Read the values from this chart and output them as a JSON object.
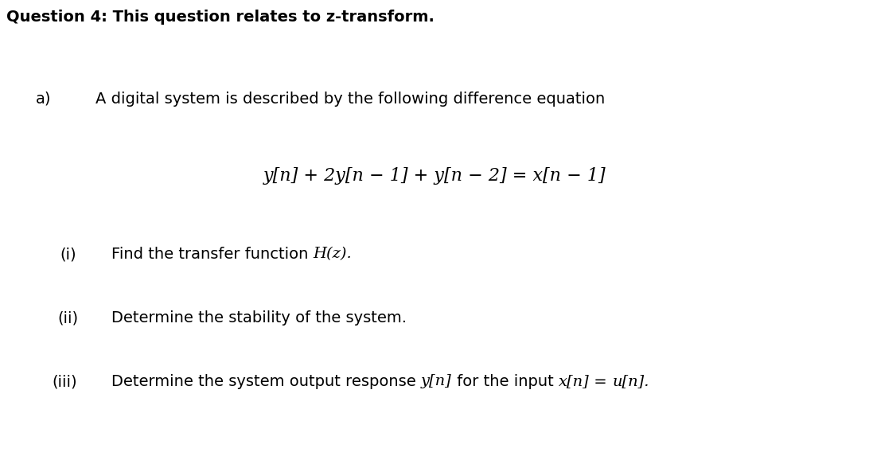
{
  "title": "Question 4: This question relates to z-transform.",
  "part_a_label": "a)",
  "part_a_text": "A digital system is described by the following difference equation",
  "equation": "y[n] + 2y[n − 1] + y[n − 2] = x[n − 1]",
  "sub_i_label": "(i)",
  "sub_i_text": "Find the transfer function ",
  "sub_i_italic": "H(z).",
  "sub_ii_label": "(ii)",
  "sub_ii_text": "Determine the stability of the system.",
  "sub_iii_label": "(iii)",
  "sub_iii_text": "Determine the system output response ",
  "sub_iii_math1": "y[n]",
  "sub_iii_mid": " for the input ",
  "sub_iii_math2": "x[n]",
  "sub_iii_eq": " = ",
  "sub_iii_math3": "u[n].",
  "bg_color": "#ffffff",
  "text_color": "#000000",
  "title_fontsize": 14,
  "body_fontsize": 14,
  "equation_fontsize": 16
}
